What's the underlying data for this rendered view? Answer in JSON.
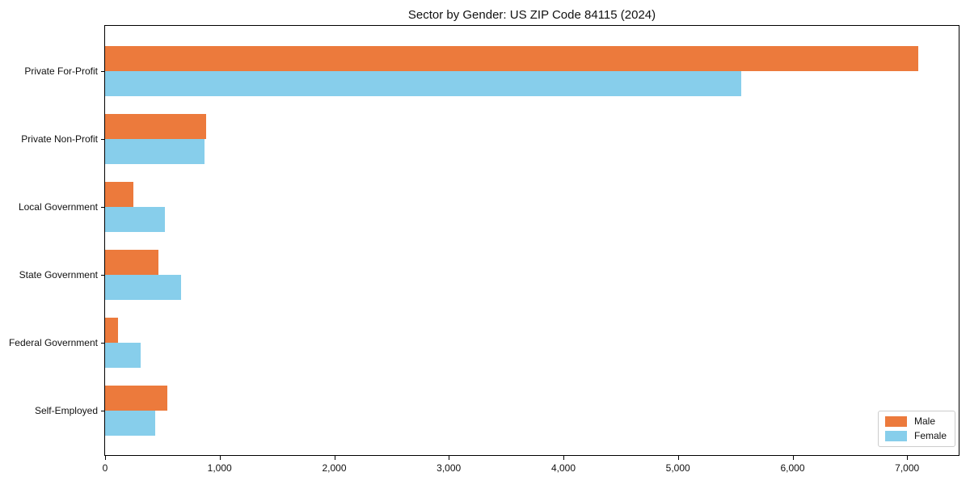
{
  "chart_data": {
    "type": "bar",
    "orientation": "horizontal",
    "title": "Sector by Gender: US ZIP Code 84115 (2024)",
    "categories": [
      "Private For-Profit",
      "Private Non-Profit",
      "Local Government",
      "State Government",
      "Federal Government",
      "Self-Employed"
    ],
    "series": [
      {
        "name": "Male",
        "color": "#EC7A3C",
        "values": [
          7100,
          880,
          250,
          465,
          110,
          540
        ]
      },
      {
        "name": "Female",
        "color": "#87CEEB",
        "values": [
          5550,
          865,
          525,
          660,
          310,
          435
        ]
      }
    ],
    "xlabel": "",
    "ylabel": "",
    "xlim": [
      0,
      7450
    ],
    "xticks": [
      0,
      1000,
      2000,
      3000,
      4000,
      5000,
      6000,
      7000
    ],
    "xtick_labels": [
      "0",
      "1,000",
      "2,000",
      "3,000",
      "4,000",
      "5,000",
      "6,000",
      "7,000"
    ],
    "grid": false,
    "legend": {
      "position": "lower right",
      "entries": [
        "Male",
        "Female"
      ]
    }
  }
}
